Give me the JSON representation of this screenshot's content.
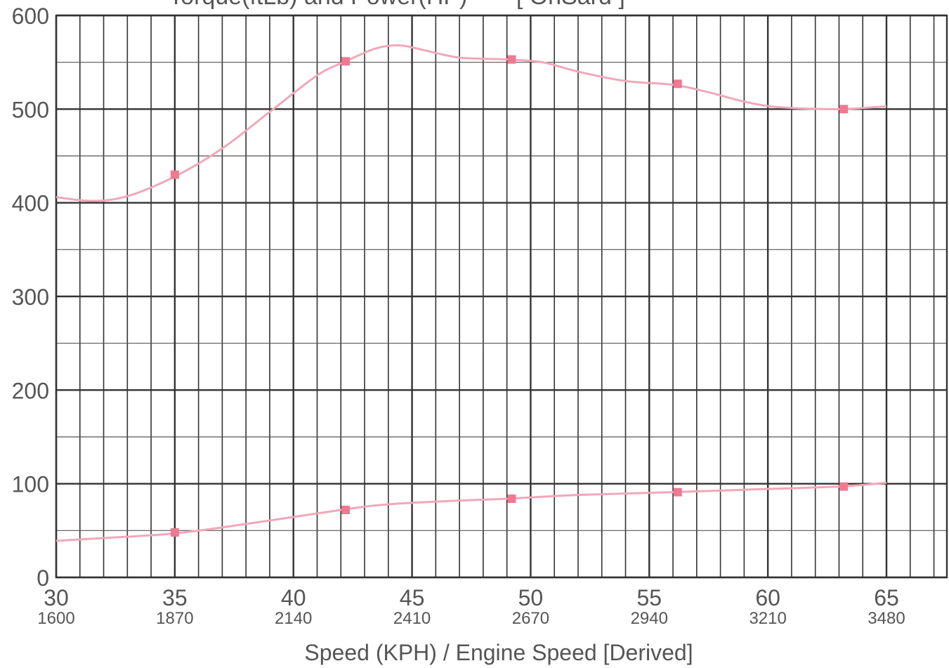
{
  "chart_data": {
    "type": "line",
    "title": "Torque(ftLb) and Power(HP)",
    "title_tag": "[ OnSard ]",
    "xlabel": "Speed (KPH) / Engine Speed [Derived]",
    "ylabel": "",
    "xlim": [
      30,
      65
    ],
    "ylim": [
      0,
      600
    ],
    "x_ticks": [
      30,
      35,
      40,
      45,
      50,
      55,
      60,
      65
    ],
    "x_ticks_secondary": [
      "1600",
      "1870",
      "2140",
      "2410",
      "2670",
      "2940",
      "3210",
      "3480"
    ],
    "y_ticks": [
      0,
      100,
      200,
      300,
      400,
      500,
      600
    ],
    "grid": true,
    "series": [
      {
        "color": "#f0a8b8",
        "marker_color": "#f07890",
        "curve": [
          [
            30,
            406
          ],
          [
            31.5,
            402
          ],
          [
            33,
            407
          ],
          [
            35,
            428
          ],
          [
            37,
            458
          ],
          [
            39,
            497
          ],
          [
            41,
            536
          ],
          [
            42.2,
            551
          ],
          [
            43.5,
            565
          ],
          [
            44.5,
            568
          ],
          [
            45.5,
            563
          ],
          [
            47,
            555
          ],
          [
            49,
            553
          ],
          [
            50.5,
            550
          ],
          [
            52,
            540
          ],
          [
            54,
            530
          ],
          [
            56,
            526
          ],
          [
            57.5,
            518
          ],
          [
            59,
            508
          ],
          [
            60.5,
            502
          ],
          [
            63,
            500
          ],
          [
            65,
            503
          ]
        ],
        "markers": [
          [
            35,
            430
          ],
          [
            42.2,
            551
          ],
          [
            49.2,
            553
          ],
          [
            56.2,
            527
          ],
          [
            63.2,
            500
          ]
        ]
      },
      {
        "color": "#f0a8b8",
        "marker_color": "#f07890",
        "curve": [
          [
            30,
            39
          ],
          [
            32,
            42
          ],
          [
            35,
            47
          ],
          [
            38,
            57
          ],
          [
            42,
            72
          ],
          [
            44,
            78
          ],
          [
            47,
            82
          ],
          [
            49,
            84
          ],
          [
            52,
            88
          ],
          [
            56,
            91
          ],
          [
            59.5,
            94
          ],
          [
            63,
            97
          ],
          [
            65,
            101
          ]
        ],
        "markers": [
          [
            35,
            48
          ],
          [
            42.2,
            72
          ],
          [
            49.2,
            84
          ],
          [
            56.2,
            91
          ],
          [
            63.2,
            97
          ]
        ]
      }
    ]
  }
}
